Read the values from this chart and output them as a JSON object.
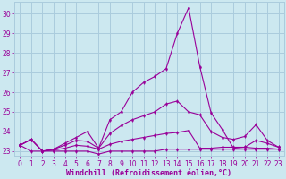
{
  "xlabel": "Windchill (Refroidissement éolien,°C)",
  "background_color": "#cce8f0",
  "grid_color": "#aaccdd",
  "line_color": "#990099",
  "xlim": [
    -0.5,
    23.5
  ],
  "ylim": [
    22.75,
    30.6
  ],
  "yticks": [
    23,
    24,
    25,
    26,
    27,
    28,
    29,
    30
  ],
  "xticks": [
    0,
    1,
    2,
    3,
    4,
    5,
    6,
    7,
    8,
    9,
    10,
    11,
    12,
    13,
    14,
    15,
    16,
    17,
    18,
    19,
    20,
    21,
    22,
    23
  ],
  "series": [
    [
      23.3,
      23.0,
      23.0,
      23.0,
      23.0,
      23.0,
      23.0,
      22.85,
      23.0,
      23.0,
      23.0,
      23.0,
      23.0,
      23.1,
      23.1,
      23.1,
      23.1,
      23.1,
      23.1,
      23.1,
      23.1,
      23.1,
      23.1,
      23.1
    ],
    [
      23.3,
      23.6,
      23.0,
      23.05,
      23.15,
      23.3,
      23.25,
      23.1,
      23.35,
      23.5,
      23.6,
      23.7,
      23.8,
      23.9,
      23.95,
      24.05,
      23.15,
      23.15,
      23.2,
      23.2,
      23.2,
      23.15,
      23.15,
      23.1
    ],
    [
      23.3,
      23.6,
      23.0,
      23.1,
      23.3,
      23.55,
      23.5,
      23.15,
      23.9,
      24.3,
      24.6,
      24.8,
      25.0,
      25.4,
      25.55,
      25.0,
      24.85,
      24.0,
      23.7,
      23.6,
      23.75,
      24.35,
      23.55,
      23.2
    ],
    [
      23.3,
      23.6,
      23.0,
      23.1,
      23.4,
      23.7,
      24.0,
      23.15,
      24.6,
      25.0,
      26.0,
      26.5,
      26.8,
      27.2,
      29.0,
      30.3,
      27.3,
      24.95,
      24.1,
      23.15,
      23.2,
      23.55,
      23.4,
      23.2
    ]
  ],
  "tick_fontsize": 5.5,
  "label_fontsize": 6.0
}
